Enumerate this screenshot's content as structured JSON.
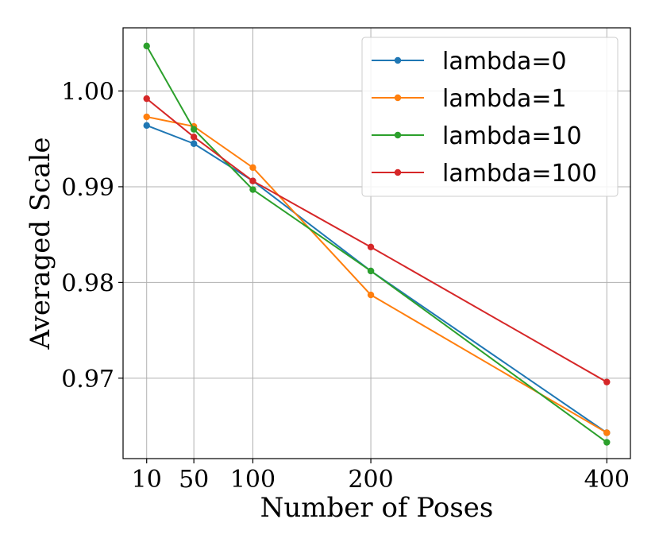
{
  "chart_data": {
    "type": "line",
    "xlabel": "Number of Poses",
    "ylabel": "Averaged Scale",
    "x": [
      10,
      50,
      100,
      200,
      400
    ],
    "x_ticks": [
      10,
      50,
      100,
      200,
      400
    ],
    "x_tick_labels": [
      "10",
      "50",
      "100",
      "200",
      "400"
    ],
    "y_ticks": [
      0.97,
      0.98,
      0.99,
      1.0
    ],
    "y_tick_labels": [
      "0.97",
      "0.98",
      "0.99",
      "1.00"
    ],
    "xlim": [
      -10,
      420
    ],
    "ylim": [
      0.9616,
      1.0066
    ],
    "grid": true,
    "legend_position": "top-right",
    "series": [
      {
        "name": "lambda=0",
        "color": "#1f77b4",
        "values": [
          0.9964,
          0.9945,
          0.9906,
          0.9812,
          0.9643
        ]
      },
      {
        "name": "lambda=1",
        "color": "#ff7f0e",
        "values": [
          0.9973,
          0.9963,
          0.992,
          0.9787,
          0.9643
        ]
      },
      {
        "name": "lambda=10",
        "color": "#2ca02c",
        "values": [
          1.0047,
          0.996,
          0.9897,
          0.9812,
          0.9633
        ]
      },
      {
        "name": "lambda=100",
        "color": "#d62728",
        "values": [
          0.9992,
          0.9952,
          0.9906,
          0.9837,
          0.9696
        ]
      }
    ]
  }
}
